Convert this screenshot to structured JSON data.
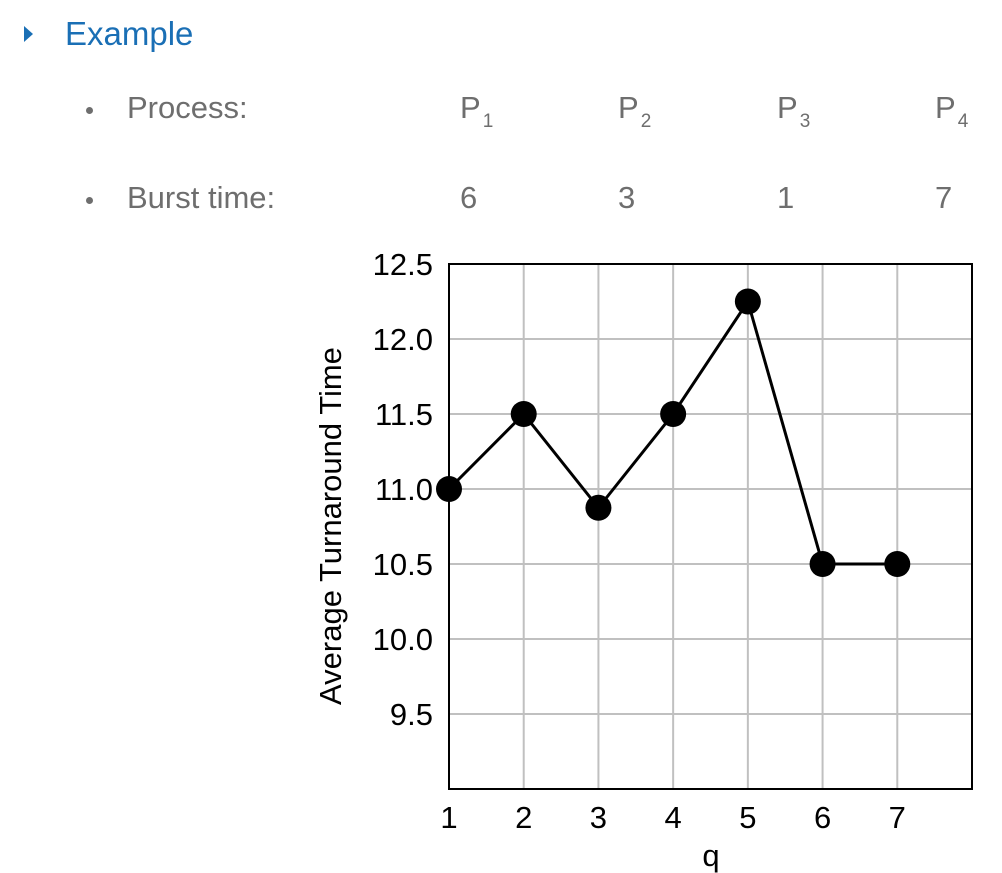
{
  "heading": {
    "text": "Example",
    "icon": "triangle-bullet-icon"
  },
  "table": {
    "rows": [
      {
        "label": "Process:",
        "cells": [
          {
            "base": "P",
            "sub": "1"
          },
          {
            "base": "P",
            "sub": "2"
          },
          {
            "base": "P",
            "sub": "3"
          },
          {
            "base": "P",
            "sub": "4"
          }
        ]
      },
      {
        "label": "Burst time:",
        "cells": [
          {
            "base": "6"
          },
          {
            "base": "3"
          },
          {
            "base": "1"
          },
          {
            "base": "7"
          }
        ]
      }
    ]
  },
  "chart_data": {
    "type": "line",
    "title": "",
    "xlabel": "q",
    "ylabel": "Average Turnaround Time",
    "x": [
      1,
      2,
      3,
      4,
      5,
      6,
      7
    ],
    "series": [
      {
        "values": [
          11.0,
          11.5,
          10.875,
          11.5,
          12.25,
          10.5,
          10.5
        ]
      }
    ],
    "xlim": [
      1,
      8
    ],
    "ylim": [
      9.0,
      12.5
    ],
    "xticks": [
      "1",
      "2",
      "3",
      "4",
      "5",
      "6",
      "7"
    ],
    "yticks": [
      "9.5",
      "10.0",
      "10.5",
      "11.0",
      "11.5",
      "12.0",
      "12.5"
    ],
    "grid": true,
    "markers": "filled-circle"
  },
  "colors": {
    "heading": "#1a6fb5",
    "text": "#6e6e6e",
    "grid": "#c0c0c0",
    "series": "#000000"
  }
}
